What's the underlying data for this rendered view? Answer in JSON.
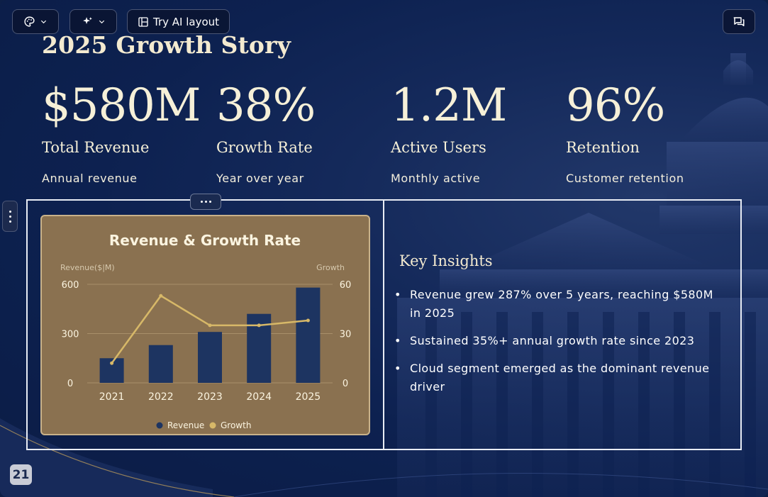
{
  "toolbar": {
    "theme_icon": "palette-icon",
    "ai_icon": "sparkles-icon",
    "ai_layout_label": "Try AI layout",
    "ai_layout_icon": "layout-icon",
    "comments_icon": "comments-icon"
  },
  "slide": {
    "title": "2025 Growth Story",
    "page_number": "21"
  },
  "stats": [
    {
      "value": "$580M",
      "label": "Total Revenue",
      "sub": "Annual revenue"
    },
    {
      "value": "38%",
      "label": "Growth Rate",
      "sub": "Year over year"
    },
    {
      "value": "1.2M",
      "label": "Active Users",
      "sub": "Monthly active"
    },
    {
      "value": "96%",
      "label": "Retention",
      "sub": "Customer retention"
    }
  ],
  "insights": {
    "title": "Key Insights",
    "items": [
      "Revenue grew 287% over 5 years, reaching $580M in 2025",
      "Sustained 35%+ annual growth rate since 2023",
      "Cloud segment emerged as the dominant revenue driver"
    ]
  },
  "colors": {
    "bar": "#1d3461",
    "line": "#d7b868",
    "card": "#8a7150"
  },
  "chart_data": {
    "type": "bar",
    "title": "Revenue & Growth Rate",
    "categories": [
      "2021",
      "2022",
      "2023",
      "2024",
      "2025"
    ],
    "ylabel": "Revenue($|M)",
    "y2label": "Growth",
    "ylim": [
      0,
      600
    ],
    "y2lim": [
      0,
      60
    ],
    "yticks": [
      "600",
      "300",
      "0"
    ],
    "y2ticks": [
      "60",
      "30",
      "0"
    ],
    "grid": true,
    "legend": "bottom",
    "series": [
      {
        "name": "Revenue",
        "type": "bar",
        "axis": "left",
        "values": [
          150,
          230,
          310,
          420,
          580
        ]
      },
      {
        "name": "Growth",
        "type": "line",
        "axis": "right",
        "values": [
          12,
          53,
          35,
          35,
          38
        ]
      }
    ]
  }
}
